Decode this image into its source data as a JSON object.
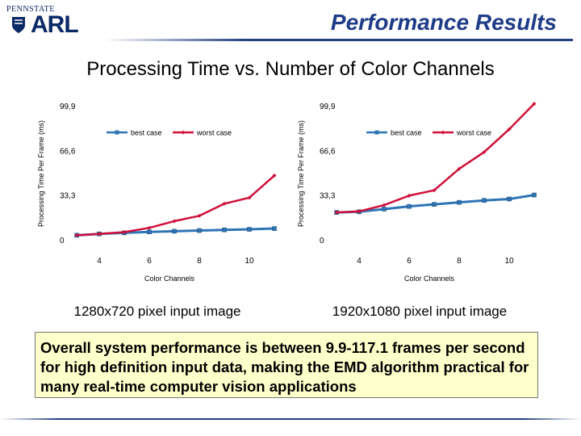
{
  "header": {
    "logo_university": "PENNSTATE",
    "logo_lab": "ARL",
    "title": "Performance Results"
  },
  "main_title": "Processing Time vs. Number of Color Channels",
  "colors": {
    "best": "#2e75b6",
    "worst": "#d0103a",
    "accent": "#1f3c88",
    "box": "#ffffcc"
  },
  "chart_data": [
    {
      "type": "line",
      "caption": "1280x720 pixel input image",
      "xlabel": "Color Channels",
      "ylabel": "Processing Time Per Frame (ms)",
      "xlim": [
        3,
        11
      ],
      "ylim": [
        0,
        99.9
      ],
      "xticks": [
        4,
        6,
        8,
        10
      ],
      "xtick_labels": [
        "4",
        "6",
        "8",
        "10"
      ],
      "yticks": [
        0,
        33.3,
        66.6,
        99.9
      ],
      "ytick_labels": [
        "0",
        "33,3",
        "66,6",
        "99,9"
      ],
      "legend": "top",
      "x": [
        3.1,
        4,
        5,
        6,
        7,
        8,
        9,
        10,
        11
      ],
      "series": [
        {
          "name": "best case",
          "values": [
            4.0,
            5.0,
            5.8,
            6.5,
            7.0,
            7.5,
            8.0,
            8.4,
            9.0
          ]
        },
        {
          "name": "worst case",
          "values": [
            4.0,
            5.0,
            6.3,
            9.5,
            14.5,
            18.5,
            27.5,
            32.0,
            48.5
          ]
        }
      ]
    },
    {
      "type": "line",
      "caption": "1920x1080 pixel input image",
      "xlabel": "Color Channels",
      "ylabel": "Processing Time Per Frame (ms)",
      "xlim": [
        3,
        11
      ],
      "ylim": [
        0,
        99.9
      ],
      "xticks": [
        4,
        6,
        8,
        10
      ],
      "xtick_labels": [
        "4",
        "6",
        "8",
        "10"
      ],
      "yticks": [
        0,
        33.3,
        66.6,
        99.9
      ],
      "ytick_labels": [
        "0",
        "33,3",
        "66,6",
        "99,9"
      ],
      "legend": "top",
      "x": [
        3.1,
        4,
        5,
        6,
        7,
        8,
        9,
        10,
        11
      ],
      "series": [
        {
          "name": "best case",
          "values": [
            21.0,
            21.5,
            23.5,
            25.5,
            27.0,
            28.5,
            30.0,
            31.0,
            34.0
          ]
        },
        {
          "name": "worst case",
          "values": [
            21.0,
            21.8,
            26.5,
            33.5,
            37.5,
            53.5,
            66.0,
            83.0,
            102.0
          ]
        }
      ]
    }
  ],
  "summary": "Overall system performance is between 9.9-117.1 frames per second for high definition input data, making the EMD algorithm practical for many real-time computer vision applications"
}
